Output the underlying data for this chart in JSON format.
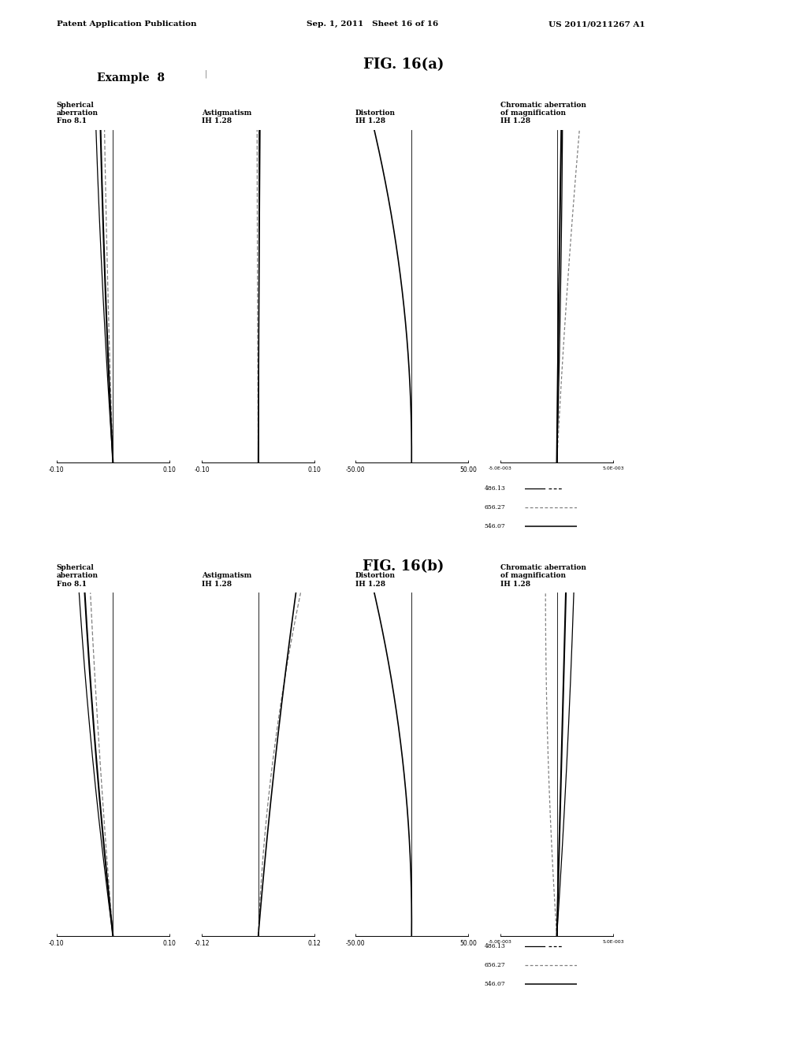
{
  "header_left": "Patent Application Publication",
  "header_mid": "Sep. 1, 2011   Sheet 16 of 16",
  "header_right": "US 2011/0211267 A1",
  "example_label": "Example  8",
  "fig_a_title": "FIG. 16(a)",
  "fig_b_title": "FIG. 16(b)",
  "background_color": "#ffffff",
  "text_color": "#000000",
  "titles_a": [
    "Spherical\naberration\nFno 8.1",
    "Astigmatism\nIH 1.28",
    "Distortion\nIH 1.28",
    "Chromatic aberration\nof magnification\nIH 1.28"
  ],
  "titles_b": [
    "Spherical\naberration\nFno 8.1",
    "Astigmatism\nIH 1.28",
    "Distortion\nIH 1.28",
    "Chromatic aberration\nof magnification\nIH 1.28"
  ],
  "legend_labels": [
    "486.13",
    "656.27",
    "546.07"
  ]
}
